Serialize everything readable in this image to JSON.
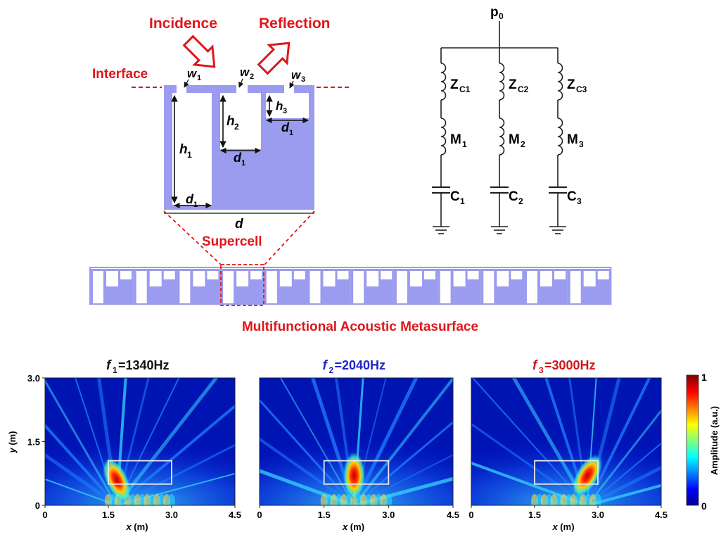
{
  "schematic": {
    "incidence": "Incidence",
    "reflection": "Reflection",
    "interface": "Interface",
    "supercell": "Supercell",
    "metasurface_title": "Multifunctional Acoustic Metasurface",
    "slits": [
      {
        "w": "w",
        "w_sub": "1",
        "h": "h",
        "h_sub": "1",
        "d": "d",
        "d_sub": "1"
      },
      {
        "w": "w",
        "w_sub": "2",
        "h": "h",
        "h_sub": "2",
        "d": "d",
        "d_sub": "1"
      },
      {
        "w": "w",
        "w_sub": "3",
        "h": "h",
        "h_sub": "3",
        "d": "d",
        "d_sub": "1"
      }
    ],
    "period": "d",
    "colors": {
      "solid": "#9b9bef",
      "annotation": "#e0161b"
    }
  },
  "circuit": {
    "source": "p",
    "source_sub": "0",
    "branches": [
      {
        "Z": "Z",
        "Z_sub": "C1",
        "M": "M",
        "M_sub": "1",
        "C": "C",
        "C_sub": "1"
      },
      {
        "Z": "Z",
        "Z_sub": "C2",
        "M": "M",
        "M_sub": "2",
        "C": "C",
        "C_sub": "2"
      },
      {
        "Z": "Z",
        "Z_sub": "C3",
        "M": "M",
        "M_sub": "3",
        "C": "C",
        "C_sub": "3"
      }
    ]
  },
  "field_maps": [
    {
      "f": "f",
      "f_sub": "1",
      "value": "=1340Hz",
      "color": "#111111",
      "focus_x": 1.7,
      "focus_y": 0.6
    },
    {
      "f": "f",
      "f_sub": "2",
      "value": "=2040Hz",
      "color": "#2323c8",
      "focus_x": 2.2,
      "focus_y": 0.7
    },
    {
      "f": "f",
      "f_sub": "3",
      "value": "=3000Hz",
      "color": "#d0161b",
      "focus_x": 2.75,
      "focus_y": 0.7
    }
  ],
  "axes": {
    "xlabel_var": "x",
    "xlabel_unit": " (m)",
    "ylabel_var": "y",
    "ylabel_unit": " (m)",
    "xticks": [
      "0",
      "1.5",
      "3.0",
      "4.5"
    ],
    "yticks": [
      "0",
      "1.5",
      "3.0"
    ],
    "xlim": [
      0,
      4.5
    ],
    "ylim": [
      0,
      3.0
    ],
    "box": {
      "x0": 1.5,
      "x1": 3.0,
      "y0": 0.5,
      "y1": 1.05
    }
  },
  "colorbar": {
    "label": "Amplitude (a.u.)",
    "max": "1",
    "min": "0"
  }
}
